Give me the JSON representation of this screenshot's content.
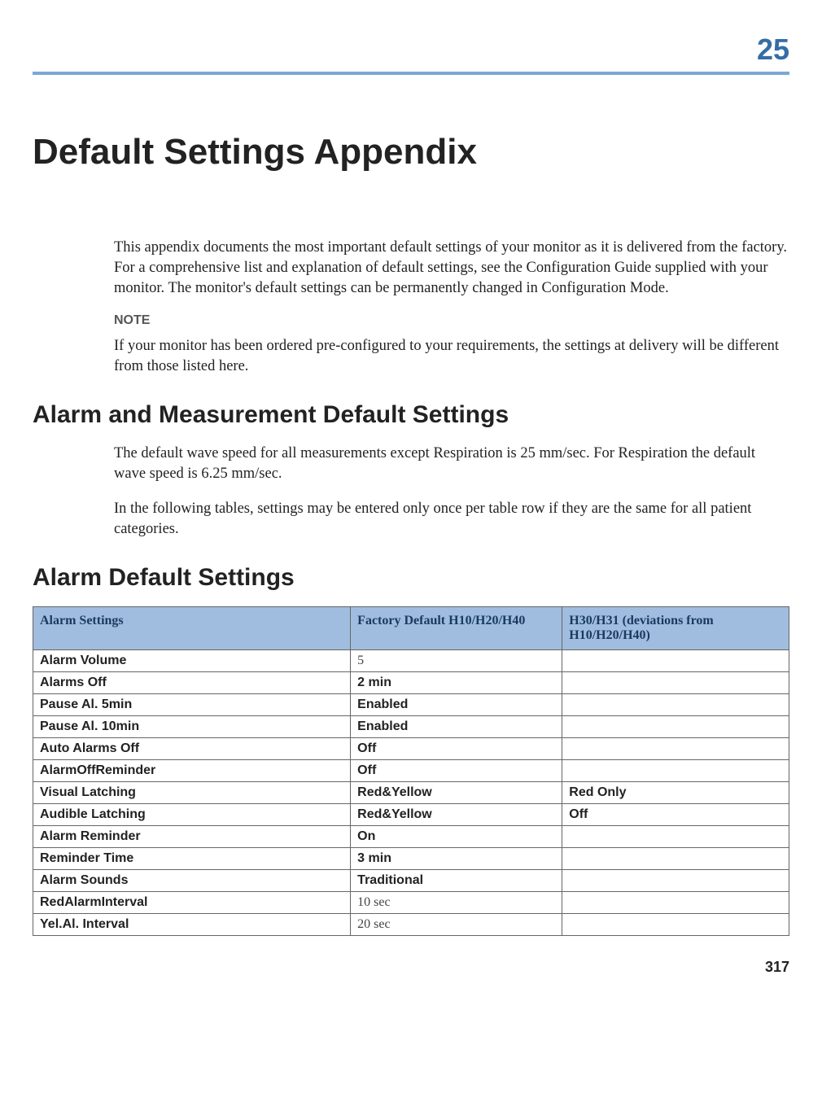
{
  "chapter_number": "25",
  "colors": {
    "chapter_number": "#356da6",
    "rule": "#7aa8d4",
    "table_header_bg": "#a0bddf",
    "table_header_text": "#193a5e",
    "table_border": "#666666"
  },
  "title": "Default Settings Appendix",
  "intro": "This appendix documents the most important default settings of your monitor as it is delivered from the factory. For a comprehensive list and explanation of default settings, see the Configuration Guide supplied with your monitor. The monitor's default settings can be permanently changed in Configuration Mode.",
  "note_label": "NOTE",
  "note_text": "If your monitor has been ordered pre-configured to your requirements, the settings at delivery will be different from those listed here.",
  "section1_heading": "Alarm and Measurement Default Settings",
  "section1_p1": "The default wave speed for all measurements except Respiration is 25 mm/sec. For Respiration the default wave speed is 6.25 mm/sec.",
  "section1_p2": "In the following tables, settings may be entered only once per table row if they are the same for all patient categories.",
  "section2_heading": "Alarm Default Settings",
  "table": {
    "col_widths_pct": [
      42,
      28,
      30
    ],
    "columns": [
      "Alarm Settings",
      "Factory Default H10/H20/H40",
      "H30/H31 (deviations from H10/H20/H40)"
    ],
    "rows": [
      {
        "label": "Alarm Volume",
        "v1": "5",
        "v1_style": "serif",
        "v2": ""
      },
      {
        "label": "Alarms Off",
        "v1": "2 min",
        "v1_style": "bold",
        "v2": ""
      },
      {
        "label": "Pause Al. 5min",
        "v1": "Enabled",
        "v1_style": "bold",
        "v2": ""
      },
      {
        "label": "Pause Al. 10min",
        "v1": "Enabled",
        "v1_style": "bold",
        "v2": ""
      },
      {
        "label": "Auto Alarms Off",
        "v1": "Off",
        "v1_style": "bold",
        "v2": ""
      },
      {
        "label": "AlarmOffReminder",
        "v1": "Off",
        "v1_style": "bold",
        "v2": ""
      },
      {
        "label": "Visual Latching",
        "v1": "Red&Yellow",
        "v1_style": "bold",
        "v2": "Red Only"
      },
      {
        "label": "Audible Latching",
        "v1": "Red&Yellow",
        "v1_style": "bold",
        "v2": "Off"
      },
      {
        "label": "Alarm Reminder",
        "v1": "On",
        "v1_style": "bold",
        "v2": ""
      },
      {
        "label": "Reminder Time",
        "v1": "3 min",
        "v1_style": "bold",
        "v2": ""
      },
      {
        "label": "Alarm Sounds",
        "v1": "Traditional",
        "v1_style": "bold",
        "v2": ""
      },
      {
        "label": "RedAlarmInterval",
        "v1": "10 sec",
        "v1_style": "serif",
        "v2": ""
      },
      {
        "label": "Yel.Al. Interval",
        "v1": "20 sec",
        "v1_style": "serif",
        "v2": ""
      }
    ]
  },
  "page_number": "317"
}
